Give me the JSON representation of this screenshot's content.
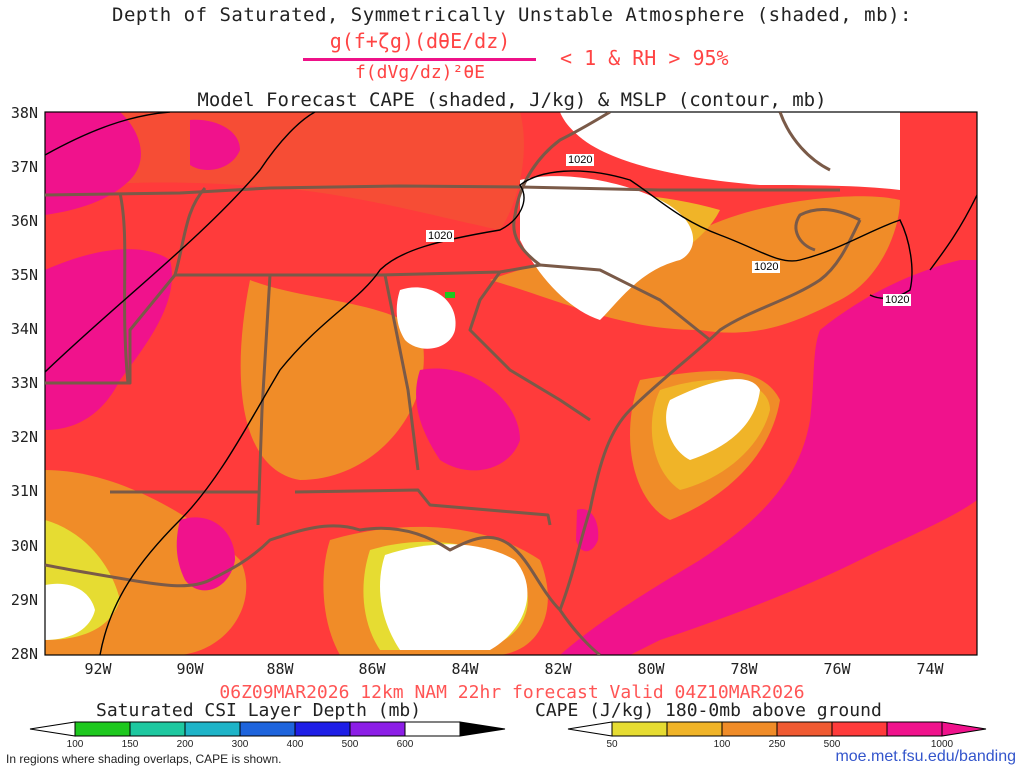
{
  "titles": {
    "line1": "Depth of Saturated, Symmetrically Unstable Atmosphere (shaded, mb):",
    "numerator": "g(f+ζg)(dθE/dz)",
    "denominator": "f(dVg/dz)²θE",
    "condition": "< 1 & RH > 95%",
    "line3": "Model Forecast CAPE (shaded, J/kg) & MSLP (contour, mb)"
  },
  "map": {
    "lat_labels": [
      "38N",
      "37N",
      "36N",
      "35N",
      "34N",
      "33N",
      "32N",
      "31N",
      "30N",
      "29N",
      "28N"
    ],
    "lon_labels": [
      "92W",
      "90W",
      "88W",
      "86W",
      "84W",
      "82W",
      "80W",
      "78W",
      "76W",
      "74W"
    ],
    "isobar_labels": [
      "1020",
      "1020",
      "1020",
      "1020"
    ],
    "colors": {
      "border": "#7a5a48",
      "ocean_bg": "#ff3b3b",
      "land_bg": "#ff3b3b"
    }
  },
  "valid_text": "06Z09MAR2026 12km NAM 22hr forecast Valid 04Z10MAR2026",
  "colorbar_csi": {
    "title": "Saturated CSI Layer Depth (mb)",
    "labels": [
      "100",
      "150",
      "200",
      "300",
      "400",
      "500",
      "600"
    ],
    "colors": [
      "#1ec81e",
      "#1ec8a0",
      "#1eb4c8",
      "#1e64dc",
      "#1e1ee6",
      "#8c1ee6"
    ]
  },
  "colorbar_cape": {
    "title": "CAPE (J/kg) 180-0mb above ground",
    "labels": [
      "50",
      "100",
      "250",
      "500",
      "1000"
    ],
    "colors": [
      "#e6dc32",
      "#f0b428",
      "#f08c28",
      "#f05a32",
      "#ff3b3b",
      "#f0128c"
    ]
  },
  "footnote": "In regions where shading overlaps, CAPE is shown.",
  "url": "moe.met.fsu.edu/banding"
}
